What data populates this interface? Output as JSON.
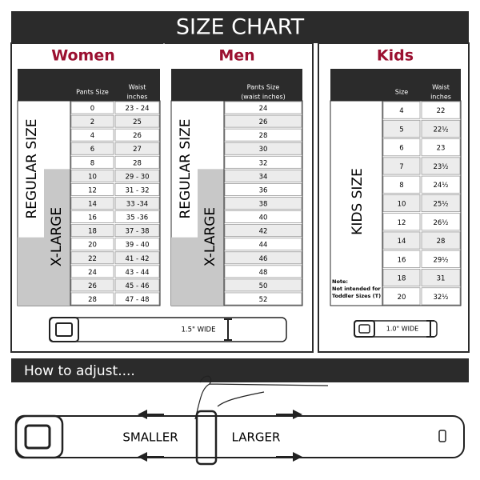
{
  "title": "SIZE CHART",
  "women": {
    "heading": "Women",
    "headers": [
      [
        "Pants Size"
      ],
      [
        "Waist",
        "inches"
      ]
    ],
    "side_labels": [
      "REGULAR SIZE",
      "X-LARGE"
    ],
    "rows": [
      [
        "0",
        "23 - 24"
      ],
      [
        "2",
        "25"
      ],
      [
        "4",
        "26"
      ],
      [
        "6",
        "27"
      ],
      [
        "8",
        "28"
      ],
      [
        "10",
        "29 - 30"
      ],
      [
        "12",
        "31 - 32"
      ],
      [
        "14",
        "33 -34"
      ],
      [
        "16",
        "35 -36"
      ],
      [
        "18",
        "37 - 38"
      ],
      [
        "20",
        "39 - 40"
      ],
      [
        "22",
        "41 - 42"
      ],
      [
        "24",
        "43 - 44"
      ],
      [
        "26",
        "45 - 46"
      ],
      [
        "28",
        "47 - 48"
      ]
    ]
  },
  "men": {
    "heading": "Men",
    "headers": [
      [
        "Pants Size",
        "(waist inches)"
      ]
    ],
    "side_labels": [
      "REGULAR SIZE",
      "X-LARGE"
    ],
    "rows": [
      [
        "24"
      ],
      [
        "26"
      ],
      [
        "28"
      ],
      [
        "30"
      ],
      [
        "32"
      ],
      [
        "34"
      ],
      [
        "36"
      ],
      [
        "38"
      ],
      [
        "40"
      ],
      [
        "42"
      ],
      [
        "44"
      ],
      [
        "46"
      ],
      [
        "48"
      ],
      [
        "50"
      ],
      [
        "52"
      ]
    ]
  },
  "kids": {
    "heading": "Kids",
    "headers": [
      [
        "Size"
      ],
      [
        "Waist",
        "inches"
      ]
    ],
    "side_labels": [
      "KIDS SIZE"
    ],
    "note": [
      "Note:",
      "Not intended for",
      "Toddler Sizes (T)"
    ],
    "rows": [
      [
        "4",
        "22"
      ],
      [
        "5",
        "22½"
      ],
      [
        "6",
        "23"
      ],
      [
        "7",
        "23½"
      ],
      [
        "8",
        "24½"
      ],
      [
        "10",
        "25½"
      ],
      [
        "12",
        "26½"
      ],
      [
        "14",
        "28"
      ],
      [
        "16",
        "29½"
      ],
      [
        "18",
        "31"
      ],
      [
        "20",
        "32½"
      ]
    ]
  },
  "belt_widths": [
    "1.5\" WIDE",
    "1.0\" WIDE"
  ],
  "adjust": {
    "heading": "How to adjust....",
    "smaller": "SMALLER",
    "larger": "LARGER"
  }
}
